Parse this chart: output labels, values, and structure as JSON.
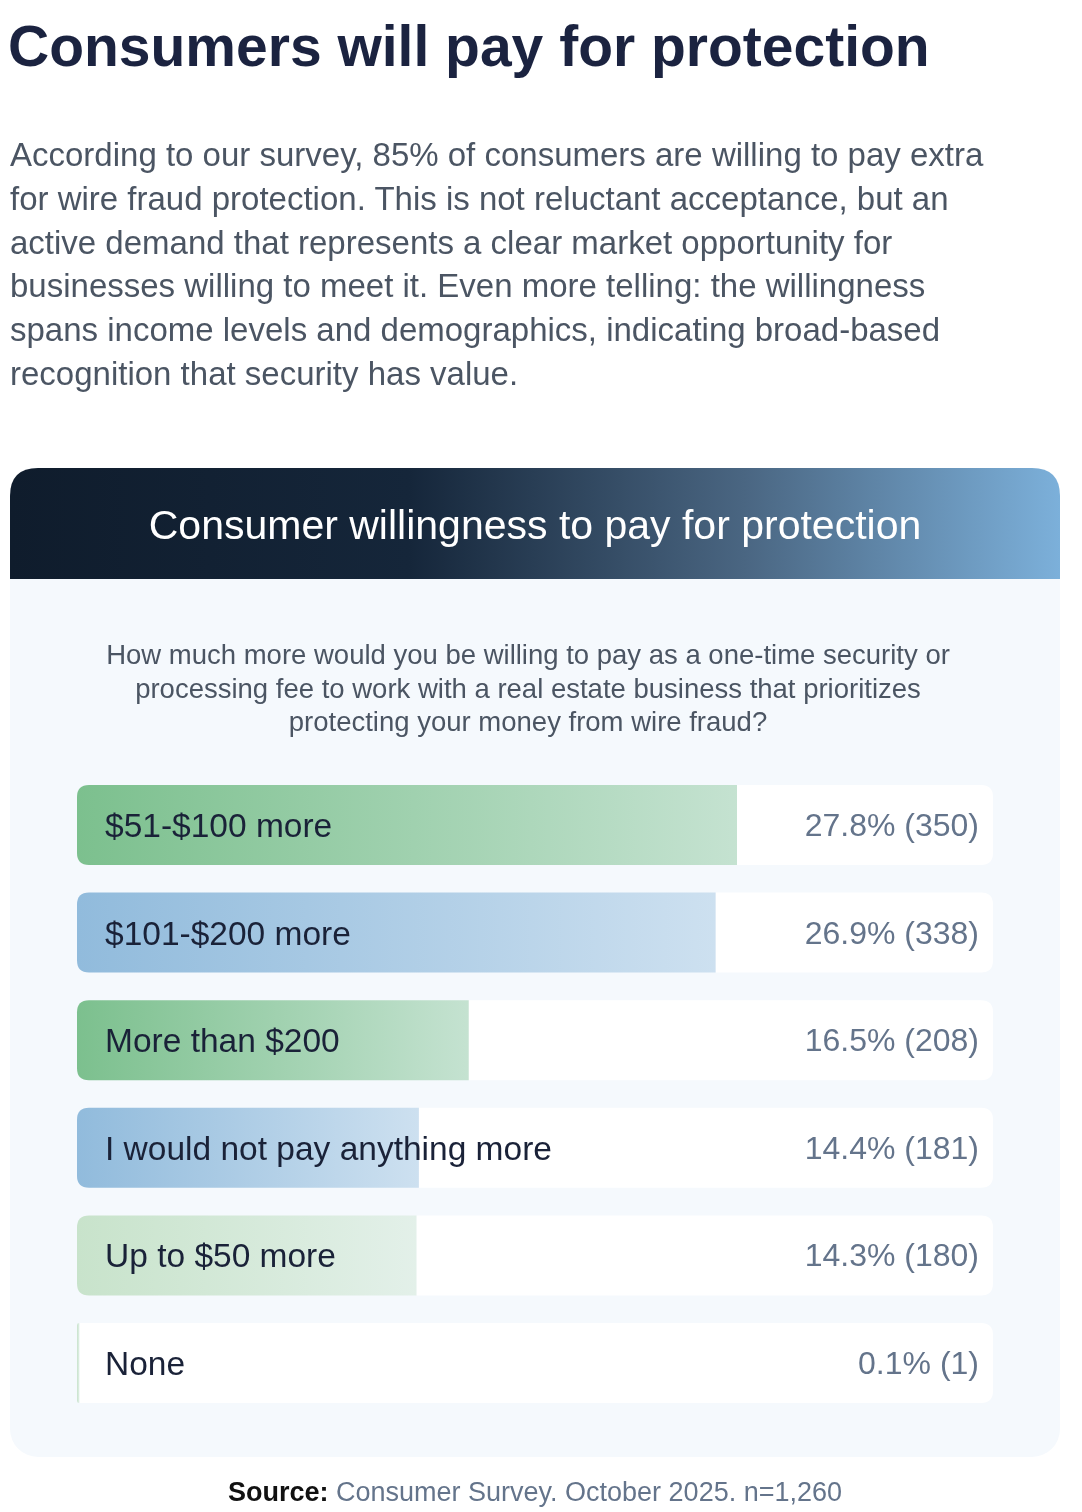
{
  "chart_data": {
    "type": "bar",
    "orientation": "horizontal",
    "title": "Consumers will pay for protection",
    "subtitle": "According to our survey, 85% of consumers are willing to pay extra for wire fraud protection. This is not reluctant acceptance, but an active demand that represents a clear market opportunity for businesses willing to meet it. Even more telling: the willingness spans income levels and demographics, indicating broad-based recognition that security has value.",
    "annotations": [
      "Consumer willingness to pay for protection",
      "How much more would you be willing to pay as a one-time security or processing fee to work with a real estate business that prioritizes protecting your money from wire fraud?",
      "Source: Consumer Survey. October 2025. n=1,260"
    ],
    "categories": [
      "$51-$100 more",
      "$101-$200 more",
      "More than $200",
      "I would not pay anything more",
      "Up to $50 more",
      "None"
    ],
    "values": [
      27.8,
      26.9,
      16.5,
      14.4,
      14.3,
      0.1
    ],
    "colors": [
      "#7cc08e",
      "#91bbdc",
      "#7cc08e",
      "#91bbdc",
      "#c8e3cb",
      "#c8e3cb"
    ],
    "value_labels": [
      "27.8% (350)",
      "26.9% (338)",
      "16.5% (208)",
      "14.4% (181)",
      "14.3% (180)",
      "0.1% (1)"
    ]
  }
}
